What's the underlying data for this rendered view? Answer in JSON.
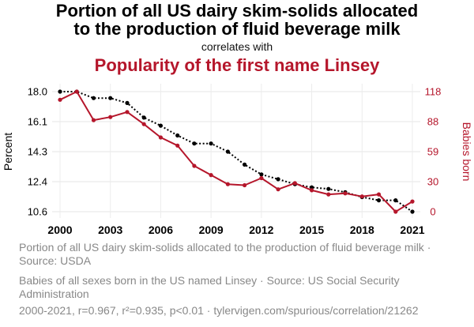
{
  "header": {
    "title_line1": "Portion of all US dairy skim-solids allocated",
    "title_line2": "to the production of fluid beverage milk",
    "subtitle": "correlates with",
    "title_series2": "Popularity of the first name Linsey"
  },
  "chart_data": {
    "type": "line",
    "x": [
      2000,
      2001,
      2002,
      2003,
      2004,
      2005,
      2006,
      2007,
      2008,
      2009,
      2010,
      2011,
      2012,
      2013,
      2014,
      2015,
      2016,
      2017,
      2018,
      2019,
      2020,
      2021
    ],
    "xticks": [
      "2000",
      "2003",
      "2006",
      "2009",
      "2012",
      "2015",
      "2018",
      "2021"
    ],
    "left_axis": {
      "label": "Percent",
      "ticks": [
        "18.0",
        "16.1",
        "14.3",
        "12.4",
        "10.6"
      ],
      "ylim": [
        10.6,
        18.0
      ]
    },
    "right_axis": {
      "label": "Babies born",
      "ticks": [
        "118",
        "88",
        "59",
        "30",
        "0"
      ],
      "ylim": [
        0,
        118
      ]
    },
    "series": [
      {
        "name": "Portion of all US dairy skim-solids allocated to the production of fluid beverage milk · Source: USDA",
        "axis": "left",
        "color": "#000000",
        "style": "dotted",
        "values": [
          18.0,
          18.0,
          17.6,
          17.6,
          17.3,
          16.4,
          15.9,
          15.3,
          14.8,
          14.8,
          14.3,
          13.5,
          12.9,
          12.6,
          12.3,
          12.1,
          12.0,
          11.8,
          11.5,
          11.3,
          11.3,
          10.6
        ]
      },
      {
        "name": "Babies of all sexes born in the US named Linsey · Source: US Social Security Administration",
        "axis": "right",
        "color": "#b5162b",
        "style": "solid",
        "values": [
          110,
          118,
          90,
          93,
          98,
          86,
          73,
          65,
          45,
          36,
          27,
          26,
          33,
          22,
          28,
          21,
          17,
          18,
          15,
          17,
          0,
          10
        ]
      }
    ],
    "grid": true
  },
  "legend": {
    "item1": "Portion of all US dairy skim-solids allocated to the production of fluid beverage milk · Source: USDA",
    "item2": "Babies of all sexes born in the US named Linsey · Source: US Social Security Administration"
  },
  "footer": "2000-2021, r=0.967, r²=0.935, p<0.01 · tylervigen.com/spurious/correlation/21262"
}
